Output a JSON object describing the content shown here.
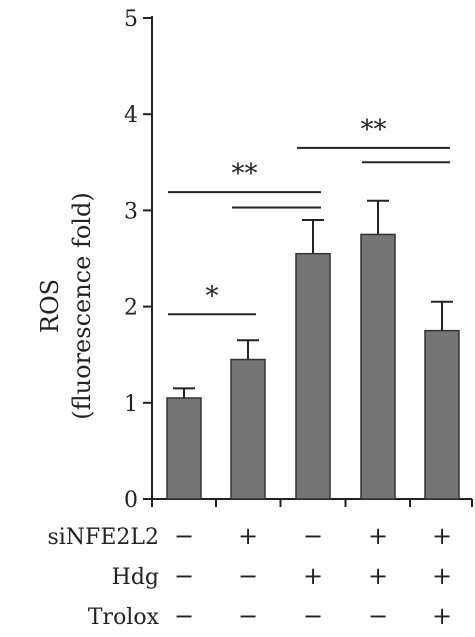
{
  "chart_data": {
    "type": "bar",
    "title": "",
    "xlabel": "",
    "ylabel_line1": "ROS",
    "ylabel_line2": "(fluorescence fold)",
    "ylim": [
      0,
      5
    ],
    "yticks": [
      "0",
      "1",
      "2",
      "3",
      "4",
      "5"
    ],
    "bar_color": "#757575",
    "values": [
      1.05,
      1.45,
      2.55,
      2.75,
      1.75
    ],
    "errors": [
      0.1,
      0.2,
      0.35,
      0.35,
      0.3
    ],
    "conditions": [
      {
        "name": "siNFE2L2",
        "signs": [
          "−",
          "+",
          "−",
          "+",
          "+"
        ]
      },
      {
        "name": "Hdg",
        "signs": [
          "−",
          "−",
          "+",
          "+",
          "+"
        ]
      },
      {
        "name": "Trolox",
        "signs": [
          "−",
          "−",
          "−",
          "−",
          "+"
        ]
      }
    ],
    "significance": [
      {
        "label": "*",
        "from": 0,
        "to": 1,
        "y": 1.92
      },
      {
        "label": "**",
        "from": 0,
        "to": 2,
        "y": 3.19,
        "label_pos": "top"
      },
      {
        "label": "",
        "from": 1,
        "to": 2,
        "y": 3.03
      },
      {
        "label": "**",
        "from": 2,
        "to": 4,
        "y": 3.65,
        "label_pos": "top"
      },
      {
        "label": "",
        "from": 3,
        "to": 4,
        "y": 3.5
      }
    ]
  }
}
